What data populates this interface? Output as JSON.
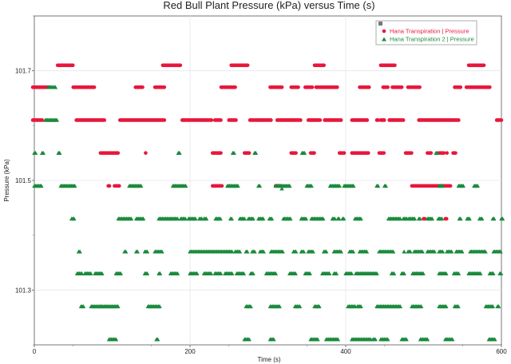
{
  "chart_data": {
    "type": "scatter",
    "title": "Red Bull Plant Pressure (kPa) versus Time (s)",
    "xlabel": "Time (s)",
    "ylabel": "Pressure (kPa)",
    "xlim": [
      0,
      600
    ],
    "ylim": [
      101.2,
      101.8
    ],
    "x_ticks": [
      0,
      200,
      400,
      600
    ],
    "x_tick_labels": [
      "0",
      "200",
      "400",
      "600"
    ],
    "y_ticks": [
      101.3,
      101.5,
      101.7
    ],
    "y_tick_labels": [
      "101.3",
      "101.5",
      "101.7"
    ],
    "grid": true,
    "legend_position": "top-right",
    "series": [
      {
        "name": "Hana Transpiration | Pressure",
        "color": "#e8173c",
        "marker": "circle",
        "levels": [
          {
            "y": 101.71,
            "runs": [
              [
                30,
                50
              ],
              [
                165,
                188
              ],
              [
                253,
                275
              ],
              [
                360,
                372
              ],
              [
                445,
                463
              ],
              [
                558,
                578
              ]
            ]
          },
          {
            "y": 101.67,
            "runs": [
              [
                -2,
                20
              ],
              [
                50,
                78
              ],
              [
                130,
                140
              ],
              [
                155,
                168
              ],
              [
                240,
                258
              ],
              [
                303,
                318
              ],
              [
                330,
                340
              ],
              [
                348,
                358
              ],
              [
                362,
                390
              ],
              [
                418,
                430
              ],
              [
                448,
                455
              ],
              [
                460,
                472
              ],
              [
                480,
                495
              ],
              [
                540,
                548
              ],
              [
                555,
                585
              ]
            ]
          },
          {
            "y": 101.61,
            "runs": [
              [
                -2,
                10
              ],
              [
                54,
                90
              ],
              [
                110,
                168
              ],
              [
                190,
                228
              ],
              [
                232,
                240
              ],
              [
                250,
                260
              ],
              [
                277,
                305
              ],
              [
                312,
                342
              ],
              [
                352,
                368
              ],
              [
                373,
                395
              ],
              [
                408,
                428
              ],
              [
                440,
                442
              ],
              [
                445,
                450
              ],
              [
                456,
                474
              ],
              [
                494,
                545
              ],
              [
                594,
                600
              ]
            ]
          },
          {
            "y": 101.55,
            "runs": [
              [
                85,
                108
              ],
              [
                229,
                240
              ],
              [
                270,
                276
              ],
              [
                330,
                336
              ],
              [
                355,
                360
              ],
              [
                392,
                398
              ],
              [
                408,
                430
              ],
              [
                443,
                450
              ],
              [
                477,
                485
              ],
              [
                505,
                510
              ],
              [
                520,
                527
              ],
              [
                538,
                542
              ]
            ]
          },
          {
            "y": 101.49,
            "runs": [
              [
                95,
                97
              ],
              [
                103,
                110
              ],
              [
                229,
                242
              ],
              [
                310,
                316
              ],
              [
                485,
                535
              ]
            ]
          },
          {
            "y": 101.43,
            "runs": [
              [
                500,
                502
              ],
              [
                528,
                530
              ]
            ]
          }
        ],
        "points": [
          [
            143,
            101.55
          ],
          [
            530,
            101.55
          ]
        ]
      },
      {
        "name": "Hana Transpiration 2 | Pressure",
        "color": "#1b8a3c",
        "marker": "triangle",
        "levels": [
          {
            "y": 101.67,
            "runs": [
              [
                18,
                28
              ]
            ]
          },
          {
            "y": 101.61,
            "runs": [
              [
                14,
                30
              ]
            ]
          },
          {
            "y": 101.55,
            "runs": [
              [
                0,
                2
              ],
              [
                10,
                12
              ],
              [
                31,
                33
              ],
              [
                185,
                187
              ],
              [
                255,
                257
              ],
              [
                283,
                285
              ],
              [
                344,
                347
              ],
              [
                516,
                518
              ]
            ]
          },
          {
            "y": 101.49,
            "runs": [
              [
                0,
                10
              ],
              [
                34,
                52
              ],
              [
                122,
                137
              ],
              [
                178,
                195
              ],
              [
                248,
                262
              ],
              [
                288,
                290
              ],
              [
                310,
                328
              ],
              [
                350,
                356
              ],
              [
                380,
                392
              ],
              [
                398,
                410
              ],
              [
                440,
                442
              ],
              [
                450,
                452
              ],
              [
                520,
                525
              ],
              [
                545,
                551
              ],
              [
                565,
                570
              ]
            ]
          },
          {
            "y": 101.43,
            "runs": [
              [
                48,
                52
              ],
              [
                108,
                125
              ],
              [
                131,
                141
              ],
              [
                160,
                185
              ],
              [
                188,
                194
              ],
              [
                198,
                208
              ],
              [
                212,
                216
              ],
              [
                218,
                222
              ],
              [
                233,
                240
              ],
              [
                252,
                254
              ],
              [
                264,
                271
              ],
              [
                275,
                282
              ],
              [
                288,
                294
              ],
              [
                302,
                306
              ],
              [
                320,
                330
              ],
              [
                343,
                350
              ],
              [
                356,
                372
              ],
              [
                383,
                386
              ],
              [
                390,
                392
              ],
              [
                396,
                398
              ],
              [
                412,
                420
              ],
              [
                455,
                470
              ],
              [
                474,
                479
              ],
              [
                481,
                489
              ],
              [
                494,
                496
              ],
              [
                505,
                512
              ],
              [
                519,
                524
              ],
              [
                546,
                548
              ],
              [
                556,
                559
              ],
              [
                572,
                576
              ],
              [
                589,
                591
              ],
              [
                600,
                602
              ]
            ]
          },
          {
            "y": 101.37,
            "runs": [
              [
                57,
                59
              ],
              [
                116,
                118
              ],
              [
                131,
                133
              ],
              [
                142,
                145
              ],
              [
                155,
                164
              ],
              [
                200,
                255
              ],
              [
                258,
                265
              ],
              [
                272,
                274
              ],
              [
                280,
                283
              ],
              [
                290,
                295
              ],
              [
                304,
                320
              ],
              [
                333,
                337
              ],
              [
                343,
                346
              ],
              [
                352,
                358
              ],
              [
                372,
                375
              ],
              [
                385,
                395
              ],
              [
                405,
                410
              ],
              [
                418,
                428
              ],
              [
                443,
                461
              ],
              [
                475,
                476
              ],
              [
                480,
                484
              ],
              [
                488,
                499
              ],
              [
                505,
                515
              ],
              [
                520,
                525
              ],
              [
                530,
                537
              ],
              [
                542,
                550
              ],
              [
                560,
                580
              ],
              [
                590,
                600
              ]
            ]
          },
          {
            "y": 101.33,
            "runs": [
              [
                55,
                62
              ],
              [
                65,
                73
              ],
              [
                78,
                88
              ],
              [
                105,
                112
              ],
              [
                142,
                145
              ],
              [
                160,
                162
              ],
              [
                175,
                185
              ],
              [
                200,
                210
              ],
              [
                218,
                228
              ],
              [
                232,
                240
              ],
              [
                245,
                255
              ],
              [
                260,
                270
              ],
              [
                278,
                282
              ],
              [
                298,
                310
              ],
              [
                328,
                336
              ],
              [
                348,
                355
              ],
              [
                370,
                380
              ],
              [
                385,
                388
              ],
              [
                400,
                408
              ],
              [
                413,
                440
              ],
              [
                459,
                462
              ],
              [
                472,
                475
              ],
              [
                486,
                500
              ],
              [
                520,
                530
              ],
              [
                539,
                545
              ],
              [
                558,
                573
              ],
              [
                585,
                590
              ],
              [
                598,
                600
              ]
            ]
          },
          {
            "y": 101.27,
            "runs": [
              [
                60,
                64
              ],
              [
                73,
                85
              ],
              [
                85,
                108
              ],
              [
                146,
                161
              ],
              [
                272,
                278
              ],
              [
                303,
                315
              ],
              [
                335,
                342
              ],
              [
                360,
                366
              ],
              [
                403,
                413
              ],
              [
                415,
                420
              ],
              [
                440,
                470
              ],
              [
                485,
                498
              ],
              [
                520,
                530
              ],
              [
                540,
                545
              ],
              [
                580,
                590
              ],
              [
                595,
                597
              ]
            ]
          },
          {
            "y": 101.21,
            "runs": [
              [
                96,
                105
              ],
              [
                157,
                159
              ],
              [
                270,
                277
              ],
              [
                303,
                308
              ],
              [
                355,
                365
              ],
              [
                375,
                390
              ],
              [
                408,
                432
              ],
              [
                435,
                438
              ],
              [
                445,
                454
              ],
              [
                472,
                478
              ],
              [
                496,
                505
              ],
              [
                528,
                537
              ],
              [
                584,
                592
              ]
            ]
          }
        ],
        "points": [
          [
            318,
            101.485
          ]
        ]
      }
    ]
  }
}
